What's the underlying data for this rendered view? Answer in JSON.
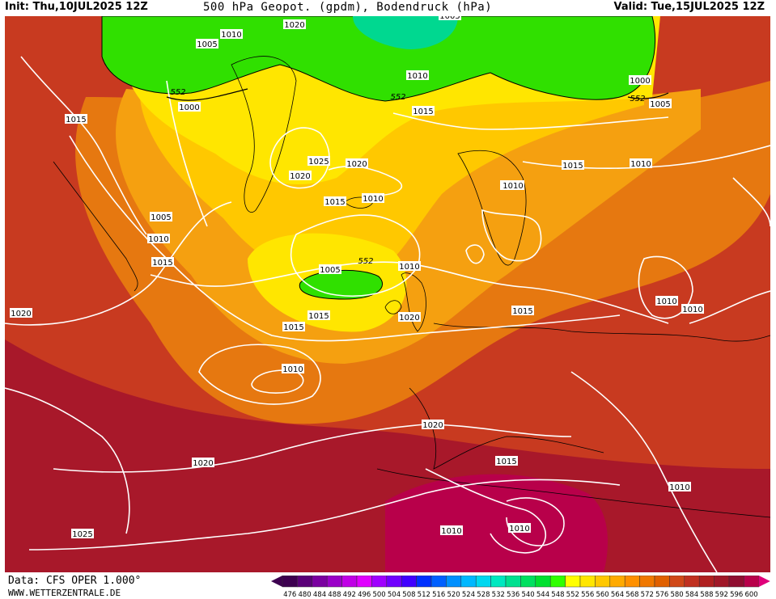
{
  "header": {
    "init": "Init: Thu,10JUL2025 12Z",
    "title": "500 hPa Geopot. (gpdm), Bodendruck (hPa)",
    "valid": "Valid: Tue,15JUL2025 12Z"
  },
  "footer": {
    "data_source": "Data: CFS OPER 1.000°",
    "site": "WWW.WETTERZENTRALE.DE"
  },
  "legend": {
    "values": [
      "476",
      "480",
      "484",
      "488",
      "492",
      "496",
      "500",
      "504",
      "508",
      "512",
      "516",
      "520",
      "524",
      "528",
      "532",
      "536",
      "540",
      "544",
      "548",
      "552",
      "556",
      "560",
      "564",
      "568",
      "572",
      "576",
      "580",
      "584",
      "588",
      "592",
      "596",
      "600"
    ],
    "colors": [
      "#3d0050",
      "#5a0078",
      "#7a00a0",
      "#9a00c8",
      "#c000e6",
      "#e000ff",
      "#a000ff",
      "#7000ff",
      "#4000ff",
      "#0030ff",
      "#0060ff",
      "#0090ff",
      "#00b8ff",
      "#00d8f0",
      "#00e8c0",
      "#00e090",
      "#00e060",
      "#00e030",
      "#30ff00",
      "#ffff00",
      "#ffe600",
      "#ffc800",
      "#ffaa00",
      "#ff9000",
      "#f07800",
      "#e06000",
      "#d04818",
      "#c03020",
      "#b02020",
      "#a01828",
      "#8f0e30",
      "#b8004a"
    ]
  },
  "pressure_labels": [
    "1015",
    "1010",
    "1005",
    "1020",
    "1000",
    "1010",
    "1000",
    "1005",
    "1015",
    "1025",
    "1020",
    "1020",
    "1005",
    "1010",
    "1015",
    "1010",
    "1015",
    "1010",
    "1005",
    "1010",
    "1015",
    "1015",
    "1010",
    "1010",
    "1020",
    "1020",
    "1015",
    "1010",
    "1020",
    "1015",
    "1010",
    "1025",
    "1010",
    "1010",
    "1010",
    "1015",
    "1010",
    "1005",
    "1020"
  ],
  "height_labels": [
    "552",
    "552",
    "552",
    "552"
  ]
}
